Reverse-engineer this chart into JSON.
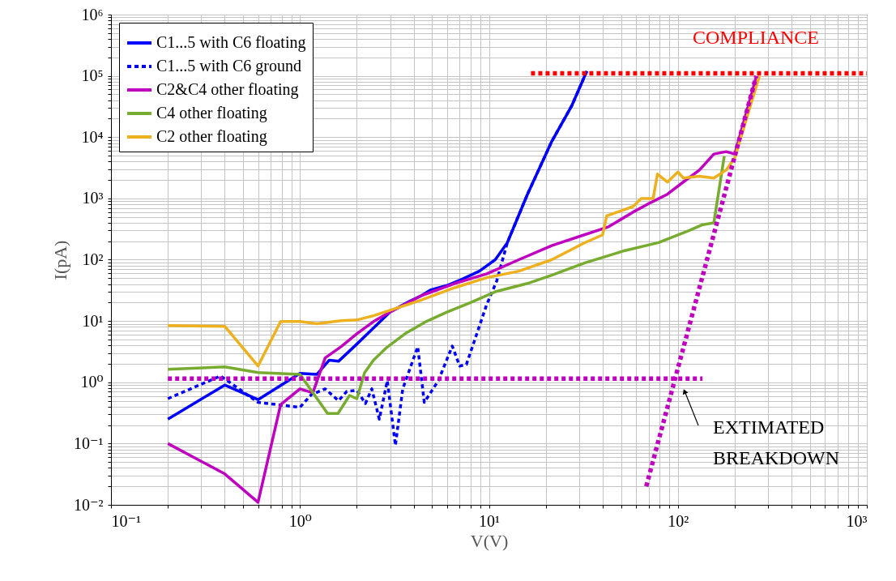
{
  "chart_data": {
    "type": "line",
    "xlabel": "V(V)",
    "ylabel": "I(pA)",
    "log": "xy",
    "grid": true,
    "legend": "top left",
    "xlim": [
      0.1,
      1000
    ],
    "xticks": [
      {
        "value": 0.1,
        "label": "10⁻¹"
      },
      {
        "value": 1,
        "label": "10⁰"
      },
      {
        "value": 10,
        "label": "10¹"
      },
      {
        "value": 100,
        "label": "10²"
      },
      {
        "value": 1000,
        "label": "10³"
      }
    ],
    "ylim": [
      0.01,
      1000000
    ],
    "yticks": [
      {
        "value": 0.01,
        "label": "10⁻²"
      },
      {
        "value": 0.1,
        "label": "10⁻¹"
      },
      {
        "value": 1,
        "label": "10⁰"
      },
      {
        "value": 10,
        "label": "10¹"
      },
      {
        "value": 100,
        "label": "10²"
      },
      {
        "value": 1000,
        "label": "10³"
      },
      {
        "value": 10000,
        "label": "10⁴"
      },
      {
        "value": 100000,
        "label": "10⁵"
      },
      {
        "value": 1000000,
        "label": "10⁶"
      }
    ],
    "series": [
      {
        "name": "C1...5 with C6 floating",
        "color": "#0000ff",
        "line_style": "solid",
        "x": [
          0.2,
          0.4,
          0.6,
          1.0,
          1.23,
          1.43,
          1.6,
          2.0,
          2.45,
          3.0,
          3.8,
          4.4,
          4.9,
          6.0,
          7.2,
          8.9,
          10.8,
          12.5,
          16,
          21.5,
          27.5,
          33
        ],
        "values": [
          0.25,
          0.9,
          0.52,
          1.4,
          1.35,
          2.3,
          2.2,
          4.2,
          7.7,
          14,
          21,
          26,
          32,
          38,
          48,
          65,
          100,
          188,
          1170,
          8500,
          33000,
          120000
        ]
      },
      {
        "name": "C1...5 with C6 ground",
        "color": "#0000ff",
        "line_style": "dotted",
        "x": [
          0.2,
          0.38,
          0.6,
          1.0,
          1.15,
          1.36,
          1.6,
          1.77,
          2.0,
          2.22,
          2.4,
          2.63,
          2.9,
          3.2,
          3.5,
          4.2,
          4.55,
          5.4,
          6.4,
          7.0,
          7.6,
          9.7,
          11,
          12.5,
          16,
          21.5,
          27.5,
          33
        ],
        "values": [
          0.54,
          1.27,
          0.47,
          0.39,
          0.63,
          0.78,
          0.5,
          0.71,
          0.74,
          0.45,
          0.78,
          0.25,
          1.06,
          0.093,
          0.78,
          3.8,
          0.47,
          1.06,
          3.9,
          1.84,
          1.95,
          18,
          45,
          188,
          1170,
          8500,
          33000,
          120000
        ]
      },
      {
        "name": "C2&C4 other floating",
        "color": "#bf00bf",
        "line_style": "solid",
        "x": [
          0.2,
          0.4,
          0.6,
          0.79,
          1.0,
          1.17,
          1.36,
          1.65,
          2.0,
          2.45,
          3.0,
          4.4,
          6.6,
          9.75,
          14.4,
          21.5,
          32,
          43,
          58,
          72,
          88,
          107,
          130,
          155,
          180,
          200,
          260
        ],
        "values": [
          0.1,
          0.032,
          0.011,
          0.43,
          0.78,
          0.67,
          2.5,
          3.8,
          6.2,
          9.8,
          14,
          26,
          41,
          59,
          100,
          170,
          255,
          345,
          600,
          860,
          1170,
          1860,
          2900,
          5300,
          5800,
          5300,
          97000
        ]
      },
      {
        "name": "C4 other floating",
        "color": "#77ac30",
        "line_style": "solid",
        "x": [
          0.2,
          0.4,
          0.6,
          1.0,
          1.4,
          1.59,
          1.83,
          2.0,
          2.2,
          2.45,
          2.85,
          3.6,
          4.65,
          6.0,
          8.0,
          10.8,
          16,
          21.5,
          32,
          52,
          79,
          115,
          134,
          155,
          176
        ],
        "values": [
          1.63,
          1.78,
          1.44,
          1.35,
          0.31,
          0.31,
          0.61,
          0.54,
          1.44,
          2.3,
          3.6,
          6.2,
          9.8,
          14,
          20,
          30,
          41,
          56,
          88,
          140,
          190,
          300,
          370,
          400,
          4900
        ]
      },
      {
        "name": "C2 other floating",
        "color": "#edb120",
        "line_style": "solid",
        "x": [
          0.2,
          0.4,
          0.6,
          0.79,
          1.0,
          1.23,
          1.65,
          2.0,
          2.45,
          3.0,
          4.4,
          6.6,
          9.75,
          14.4,
          21.5,
          32,
          40,
          42,
          48,
          58,
          64,
          74,
          78,
          88,
          100,
          107,
          130,
          155,
          180,
          200,
          270
        ],
        "values": [
          8.4,
          8.2,
          1.84,
          9.8,
          9.8,
          9,
          10.1,
          10.4,
          12.2,
          15,
          22,
          35,
          51,
          65,
          100,
          188,
          255,
          520,
          600,
          740,
          1000,
          1000,
          2500,
          1850,
          2700,
          2150,
          2300,
          2150,
          2900,
          4600,
          100000
        ]
      },
      {
        "color": "#bf00bf",
        "line_style": "dotted",
        "x": [
          0.2,
          135
        ],
        "values": [
          1.15,
          1.15
        ]
      },
      {
        "color": "#bf00bf",
        "line_style": "dotted",
        "x": [
          68,
          260
        ],
        "values": [
          0.02,
          100000
        ]
      },
      {
        "color": "#ff0000",
        "line_style": "dotted",
        "x": [
          16.7,
          1000
        ],
        "values": [
          110000,
          110000
        ]
      }
    ],
    "annotations": [
      "COMPLIANCE",
      "EXTIMATED\nBREAKDOWN"
    ]
  }
}
